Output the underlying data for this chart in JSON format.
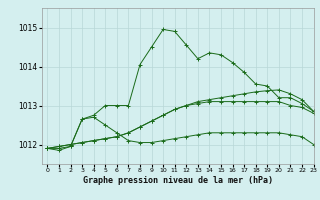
{
  "title": "Graphe pression niveau de la mer (hPa)",
  "bg_color": "#d4efef",
  "grid_color": "#b8d8d8",
  "line_color": "#1a6b1a",
  "xlim": [
    -0.5,
    23
  ],
  "ylim": [
    1011.5,
    1015.5
  ],
  "yticks": [
    1012,
    1013,
    1014,
    1015
  ],
  "xticks": [
    0,
    1,
    2,
    3,
    4,
    5,
    6,
    7,
    8,
    9,
    10,
    11,
    12,
    13,
    14,
    15,
    16,
    17,
    18,
    19,
    20,
    21,
    22,
    23
  ],
  "series": [
    [
      1011.9,
      1011.85,
      1011.95,
      1012.65,
      1012.75,
      1013.0,
      1013.0,
      1013.0,
      1014.05,
      1014.5,
      1014.95,
      1014.9,
      1014.55,
      1014.2,
      1014.35,
      1014.3,
      1014.1,
      1013.85,
      1013.55,
      1013.5,
      1013.2,
      1013.2,
      1013.05,
      1012.85
    ],
    [
      1011.9,
      1011.95,
      1012.0,
      1012.05,
      1012.1,
      1012.15,
      1012.2,
      1012.3,
      1012.45,
      1012.6,
      1012.75,
      1012.9,
      1013.0,
      1013.1,
      1013.15,
      1013.2,
      1013.25,
      1013.3,
      1013.35,
      1013.38,
      1013.4,
      1013.3,
      1013.15,
      1012.85
    ],
    [
      1011.9,
      1011.95,
      1012.0,
      1012.05,
      1012.1,
      1012.15,
      1012.2,
      1012.3,
      1012.45,
      1012.6,
      1012.75,
      1012.9,
      1013.0,
      1013.05,
      1013.1,
      1013.1,
      1013.1,
      1013.1,
      1013.1,
      1013.1,
      1013.1,
      1013.0,
      1012.95,
      1012.8
    ],
    [
      1011.9,
      1011.9,
      1011.95,
      1012.65,
      1012.7,
      1012.5,
      1012.3,
      1012.1,
      1012.05,
      1012.05,
      1012.1,
      1012.15,
      1012.2,
      1012.25,
      1012.3,
      1012.3,
      1012.3,
      1012.3,
      1012.3,
      1012.3,
      1012.3,
      1012.25,
      1012.2,
      1012.0
    ]
  ]
}
